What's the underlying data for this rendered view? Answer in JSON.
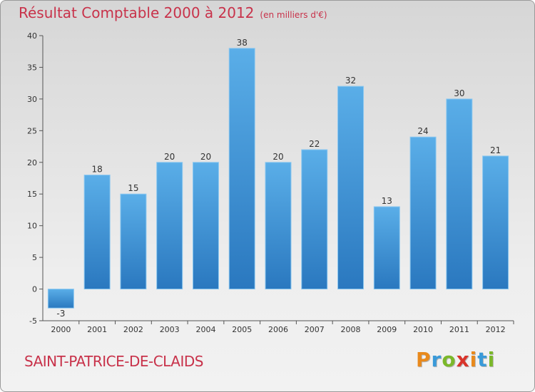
{
  "header": {
    "title": "Résultat Comptable 2000 à 2012",
    "subtitle": "(en milliers d'€)"
  },
  "footer": {
    "city": "SAINT-PATRICE-DE-CLAIDS",
    "logo_letters": [
      "P",
      "r",
      "o",
      "x",
      "i",
      "t",
      "i"
    ],
    "logo_colors": [
      "#e8891c",
      "#3a9ad9",
      "#7bb82a",
      "#d9342b",
      "#e8891c",
      "#3a9ad9",
      "#7bb82a"
    ]
  },
  "colors": {
    "bar_top": "#5aaee8",
    "bar_bottom": "#2a78bf",
    "axis": "#555555",
    "text": "#333333"
  },
  "chart_data": {
    "type": "bar",
    "title": "Résultat Comptable 2000 à 2012",
    "xlabel": "",
    "ylabel": "",
    "categories": [
      "2000",
      "2001",
      "2002",
      "2003",
      "2004",
      "2005",
      "2006",
      "2007",
      "2008",
      "2009",
      "2010",
      "2011",
      "2012"
    ],
    "values": [
      -3,
      18,
      15,
      20,
      20,
      38,
      20,
      22,
      32,
      13,
      24,
      30,
      21
    ],
    "ylim": [
      -5,
      40
    ],
    "yticks": [
      -5,
      0,
      5,
      10,
      15,
      20,
      25,
      30,
      35,
      40
    ]
  }
}
